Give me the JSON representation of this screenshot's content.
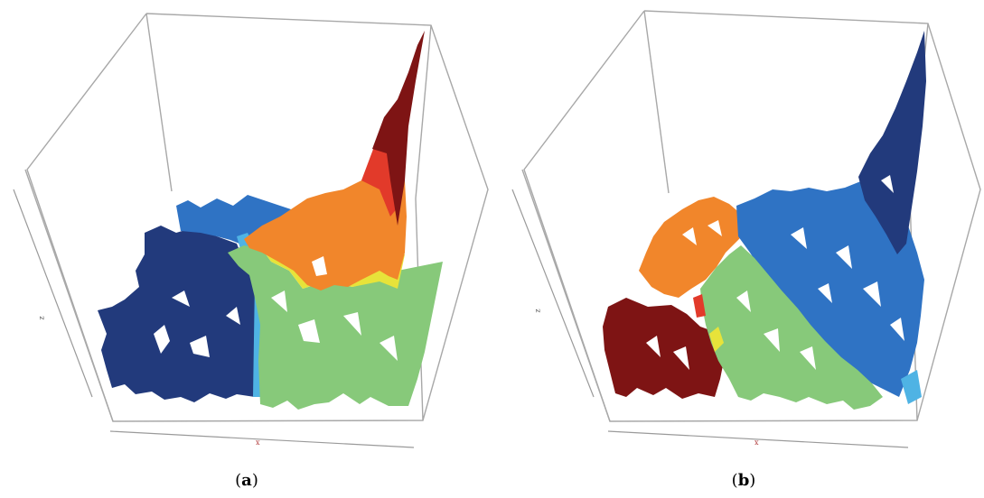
{
  "panels": [
    {
      "id": "a",
      "caption_open": "(",
      "caption_letter": "a",
      "caption_close": ")",
      "axis_x_label": "x",
      "axis_z_label": "z"
    },
    {
      "id": "b",
      "caption_open": "(",
      "caption_letter": "b",
      "caption_close": ")",
      "axis_x_label": "x",
      "axis_z_label": "z"
    }
  ],
  "colors": {
    "dark_blue": "#223a7c",
    "medium_blue": "#2f73c4",
    "light_blue": "#4fb3e4",
    "green": "#87c97a",
    "yellow": "#e7e33a",
    "orange": "#f1862b",
    "red": "#e23a2a",
    "dark_red": "#7e1414",
    "box_line": "#a8a8a8"
  }
}
